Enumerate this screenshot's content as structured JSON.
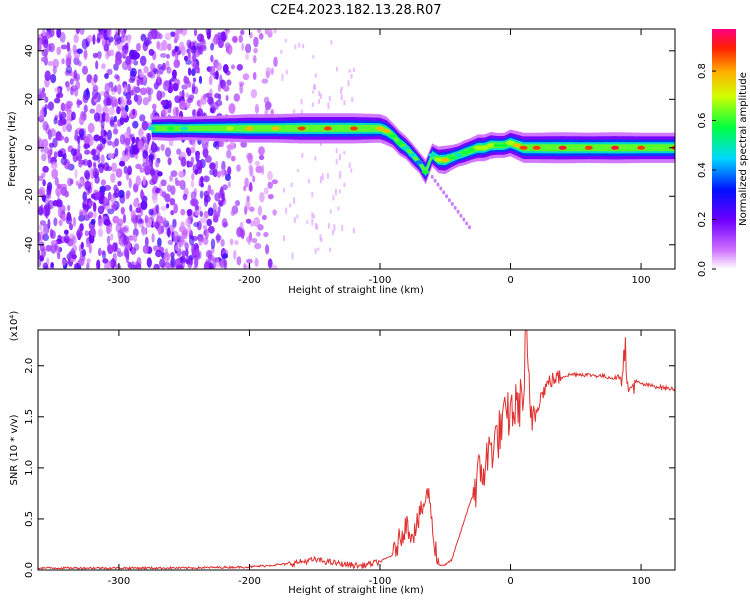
{
  "title": "C2E4.2023.182.13.28.R07",
  "chart_data": [
    {
      "type": "heatmap",
      "xlabel": "Height of straight line (km)",
      "ylabel": "Frequency (Hz)",
      "xlim": [
        -362,
        126
      ],
      "ylim": [
        -50,
        49
      ],
      "xticks": [
        -300,
        -200,
        -100,
        0,
        100
      ],
      "yticks": [
        -40,
        -20,
        0,
        20,
        40
      ],
      "colorbar": {
        "label": "Normalized spectral amplitude",
        "range": [
          0,
          0.97
        ],
        "ticks": [
          0.0,
          0.2,
          0.4,
          0.6,
          0.8
        ],
        "colormap": "rainbow (magenta-blue-cyan-green-yellow-red)"
      },
      "ridge": {
        "x": [
          -275,
          -260,
          -250,
          -215,
          -200,
          -180,
          -160,
          -140,
          -120,
          -100,
          -95,
          -90,
          -85,
          -80,
          -75,
          -70,
          -65,
          -60,
          -55,
          -50,
          -45,
          -40,
          -35,
          -30,
          -25,
          -20,
          -15,
          -10,
          -5,
          0,
          5,
          10,
          20,
          40,
          60,
          80,
          100,
          126
        ],
        "freq": [
          8,
          8,
          8,
          8,
          8,
          8,
          8,
          8,
          8,
          8,
          7,
          5,
          2,
          0,
          -3,
          -6,
          -10,
          -3,
          -5,
          -5,
          -4,
          -3,
          -2,
          -1,
          0,
          0,
          1,
          1,
          1,
          2,
          1,
          0,
          0,
          0,
          0,
          0,
          0,
          0
        ],
        "amplitude": [
          0.5,
          0.6,
          0.5,
          0.7,
          0.8,
          0.8,
          0.9,
          0.9,
          0.9,
          0.8,
          0.8,
          0.6,
          0.6,
          0.5,
          0.5,
          0.4,
          0.6,
          0.5,
          0.7,
          0.8,
          0.6,
          0.5,
          0.6,
          0.6,
          0.7,
          0.7,
          0.7,
          0.6,
          0.6,
          0.7,
          0.8,
          0.9,
          0.9,
          0.95,
          0.9,
          0.95,
          0.9,
          0.9
        ]
      },
      "noise_extent_x": [
        -362,
        -180
      ]
    },
    {
      "type": "line",
      "xlabel": "Height of straight line (km)",
      "ylabel": "SNR (10 * v/v)",
      "y_multiplier": "(x10⁴)",
      "xlim": [
        -362,
        126
      ],
      "ylim": [
        0,
        2.35
      ],
      "xticks": [
        -300,
        -200,
        -100,
        0,
        100
      ],
      "yticks": [
        0.0,
        0.5,
        1.0,
        1.5,
        2.0
      ],
      "color": "#e03030",
      "series": [
        {
          "x": [
            -362,
            -300,
            -250,
            -200,
            -170,
            -150,
            -130,
            -115,
            -100,
            -90,
            -85,
            -80,
            -75,
            -70,
            -65,
            -62,
            -60,
            -55,
            -50,
            -45,
            -40,
            -35,
            -30,
            -25,
            -20,
            -15,
            -10,
            -5,
            0,
            5,
            10,
            12,
            15,
            20,
            25,
            30,
            40,
            50,
            60,
            70,
            80,
            85,
            88,
            90,
            95,
            100,
            110,
            120,
            126
          ],
          "y": [
            0.02,
            0.02,
            0.02,
            0.03,
            0.06,
            0.1,
            0.06,
            0.04,
            0.08,
            0.15,
            0.3,
            0.45,
            0.35,
            0.5,
            0.7,
            0.75,
            0.4,
            0.05,
            0.05,
            0.1,
            0.3,
            0.5,
            0.7,
            0.9,
            1.0,
            1.2,
            1.3,
            1.45,
            1.55,
            1.6,
            1.7,
            2.35,
            1.5,
            1.6,
            1.75,
            1.85,
            1.9,
            1.92,
            1.91,
            1.9,
            1.88,
            1.9,
            2.2,
            1.7,
            1.85,
            1.82,
            1.8,
            1.78,
            1.77
          ]
        }
      ]
    }
  ]
}
